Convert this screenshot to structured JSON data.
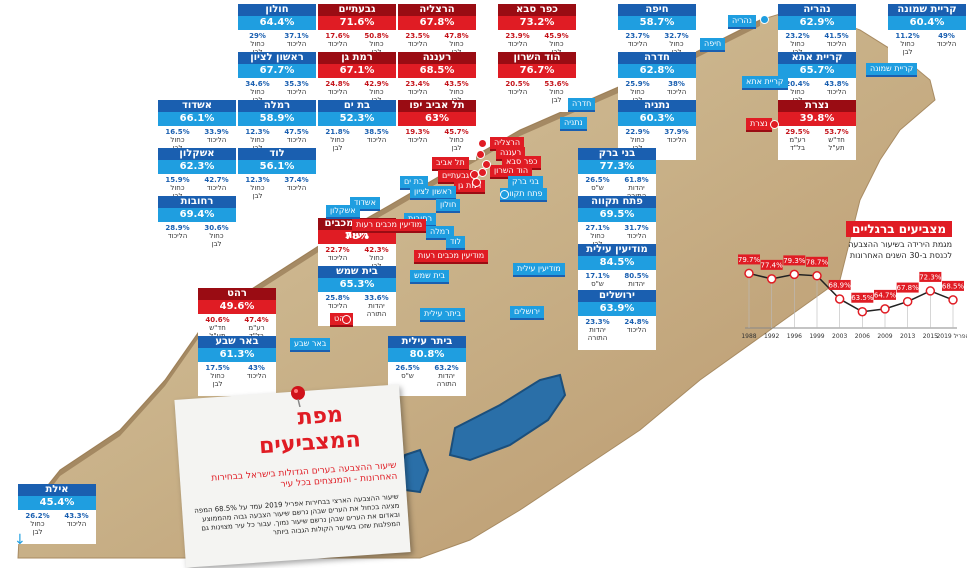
{
  "title": {
    "line1": "מפת",
    "line2": "המצביעים",
    "subtitle": "שיעור ההצבעה בערים הגדולות בישראל בבחירות האחרונות - והמנצחים בכל עיר",
    "description": "שיעור ההצבעה הארצי בבחירות אפריל 2019 עמד על 68.5% המפה מציגה בכחול את הערים שבהן נרשם שיעור הצבעה גבוה מהממוצע ובאדום את הערים שבהן נרשם שיעור נמוך. עבור כל עיר מצוינות גם המפלגות שזכו בשיעור הקולות הגבוה ביותר"
  },
  "colors": {
    "blue_header": "#1a5fb0",
    "blue": "#1f9ee0",
    "red_header": "#9a0c13",
    "red": "#e01c24"
  },
  "cards": [
    {
      "name": "חולון",
      "pct": "64.4%",
      "color": "blue",
      "a": {
        "v": "37.1%",
        "p1": "הליכוד"
      },
      "b": {
        "v": "29%",
        "p1": "כחול",
        "p2": "לבן"
      }
    },
    {
      "name": "גבעתיים",
      "pct": "71.6%",
      "color": "red",
      "a": {
        "v": "50.8%",
        "p1": "כחול",
        "p2": "לבן"
      },
      "b": {
        "v": "17.6%",
        "p1": "הליכוד"
      }
    },
    {
      "name": "הרצליה",
      "pct": "67.8%",
      "color": "red",
      "a": {
        "v": "47.8%",
        "p1": "כחול",
        "p2": "לבן"
      },
      "b": {
        "v": "23.5%",
        "p1": "הליכוד"
      }
    },
    {
      "name": "כפר סבא",
      "pct": "73.2%",
      "color": "red",
      "a": {
        "v": "45.9%",
        "p1": "כחול",
        "p2": "לבן"
      },
      "b": {
        "v": "23.9%",
        "p1": "הליכוד"
      }
    },
    {
      "name": "חיפה",
      "pct": "58.7%",
      "color": "blue",
      "a": {
        "v": "32.7%",
        "p1": "כחול",
        "p2": "לבן"
      },
      "b": {
        "v": "23.7%",
        "p1": "הליכוד"
      }
    },
    {
      "name": "נהריה",
      "pct": "62.9%",
      "color": "blue",
      "a": {
        "v": "41.5%",
        "p1": "הליכוד"
      },
      "b": {
        "v": "23.2%",
        "p1": "כחול",
        "p2": "לבן"
      }
    },
    {
      "name": "קריית שמונה",
      "pct": "60.4%",
      "color": "blue",
      "a": {
        "v": "49%",
        "p1": "הליכוד"
      },
      "b": {
        "v": "11.2%",
        "p1": "כחול",
        "p2": "לבן"
      }
    },
    {
      "name": "ראשון לציון",
      "pct": "67.7%",
      "color": "blue",
      "a": {
        "v": "35.3%",
        "p1": "הליכוד"
      },
      "b": {
        "v": "34.6%",
        "p1": "כחול",
        "p2": "לבן"
      }
    },
    {
      "name": "רמת גן",
      "pct": "67.1%",
      "color": "red",
      "a": {
        "v": "42.9%",
        "p1": "כחול",
        "p2": "לבן"
      },
      "b": {
        "v": "24.8%",
        "p1": "הליכוד"
      }
    },
    {
      "name": "רעננה",
      "pct": "68.5%",
      "color": "red",
      "a": {
        "v": "43.5%",
        "p1": "כחול",
        "p2": "לבן"
      },
      "b": {
        "v": "23.4%",
        "p1": "הליכוד"
      }
    },
    {
      "name": "הוד השרון",
      "pct": "76.7%",
      "color": "red",
      "a": {
        "v": "53.6%",
        "p1": "כחול",
        "p2": "לבן"
      },
      "b": {
        "v": "20.5%",
        "p1": "הליכוד"
      }
    },
    {
      "name": "חדרה",
      "pct": "62.8%",
      "color": "blue",
      "a": {
        "v": "38%",
        "p1": "הליכוד"
      },
      "b": {
        "v": "25.9%",
        "p1": "כחול",
        "p2": "לבן"
      }
    },
    {
      "name": "קריית אתא",
      "pct": "65.7%",
      "color": "blue",
      "a": {
        "v": "43.8%",
        "p1": "הליכוד"
      },
      "b": {
        "v": "20.4%",
        "p1": "כחול",
        "p2": "לבן"
      }
    },
    {
      "name": "אשדוד",
      "pct": "66.1%",
      "color": "blue",
      "a": {
        "v": "33.9%",
        "p1": "הליכוד"
      },
      "b": {
        "v": "16.5%",
        "p1": "כחול",
        "p2": "לבן"
      }
    },
    {
      "name": "רמלה",
      "pct": "58.9%",
      "color": "blue",
      "a": {
        "v": "47.5%",
        "p1": "הליכוד"
      },
      "b": {
        "v": "12.3%",
        "p1": "כחול",
        "p2": "לבן"
      }
    },
    {
      "name": "בת ים",
      "pct": "52.3%",
      "color": "blue",
      "a": {
        "v": "38.5%",
        "p1": "הליכוד"
      },
      "b": {
        "v": "21.8%",
        "p1": "כחול",
        "p2": "לבן"
      }
    },
    {
      "name": "תל אביב יפו",
      "pct": "63%",
      "color": "red",
      "a": {
        "v": "45.7%",
        "p1": "כחול",
        "p2": "לבן"
      },
      "b": {
        "v": "19.3%",
        "p1": "הליכוד"
      }
    },
    {
      "name": "נתניה",
      "pct": "60.3%",
      "color": "blue",
      "a": {
        "v": "37.9%",
        "p1": "הליכוד"
      },
      "b": {
        "v": "22.9%",
        "p1": "כחול",
        "p2": "לבן"
      }
    },
    {
      "name": "נצרת",
      "pct": "39.8%",
      "color": "red",
      "a": {
        "v": "53.7%",
        "p1": "חד\"ש",
        "p2": "תע\"ל"
      },
      "b": {
        "v": "29.5%",
        "p1": "רע\"מ",
        "p2": "בל\"ד"
      }
    },
    {
      "name": "אשקלון",
      "pct": "62.3%",
      "color": "blue",
      "a": {
        "v": "42.7%",
        "p1": "הליכוד"
      },
      "b": {
        "v": "15.9%",
        "p1": "כחול",
        "p2": "לבן"
      }
    },
    {
      "name": "לוד",
      "pct": "56.1%",
      "color": "blue",
      "a": {
        "v": "37.4%",
        "p1": "הליכוד"
      },
      "b": {
        "v": "12.3%",
        "p1": "כחול",
        "p2": "לבן"
      }
    },
    {
      "name": "בני ברק",
      "pct": "77.3%",
      "color": "blue",
      "a": {
        "v": "61.8%",
        "p1": "יהדות",
        "p2": "התורה"
      },
      "b": {
        "v": "26.5%",
        "p1": "ש\"ס"
      }
    },
    {
      "name": "רחובות",
      "pct": "69.4%",
      "color": "blue",
      "a": {
        "v": "30.6%",
        "p1": "כחול",
        "p2": "לבן"
      },
      "b": {
        "v": "28.9%",
        "p1": "הליכוד"
      }
    },
    {
      "name": "פתח תקווה",
      "pct": "69.5%",
      "color": "blue",
      "a": {
        "v": "31.7%",
        "p1": "הליכוד"
      },
      "b": {
        "v": "27.1%",
        "p1": "כחול",
        "p2": "לבן"
      }
    },
    {
      "name": "מודיעין מכבים רעות",
      "pct": "78%",
      "color": "red",
      "a": {
        "v": "42.3%",
        "p1": "כחול",
        "p2": "לבן"
      },
      "b": {
        "v": "22.7%",
        "p1": "הליכוד"
      }
    },
    {
      "name": "מודיעין עילית",
      "pct": "84.5%",
      "color": "blue",
      "a": {
        "v": "80.5%",
        "p1": "יהדות",
        "p2": "התורה"
      },
      "b": {
        "v": "17.1%",
        "p1": "ש\"ס"
      }
    },
    {
      "name": "בית שמש",
      "pct": "65.3%",
      "color": "blue",
      "a": {
        "v": "33.6%",
        "p1": "יהדות",
        "p2": "התורה"
      },
      "b": {
        "v": "25.8%",
        "p1": "הליכוד"
      }
    },
    {
      "name": "רהט",
      "pct": "49.6%",
      "color": "red",
      "a": {
        "v": "47.4%",
        "p1": "רע\"מ",
        "p2": "בל\"ד"
      },
      "b": {
        "v": "40.6%",
        "p1": "חד\"ש",
        "p2": "תע\"ל"
      }
    },
    {
      "name": "ירושלים",
      "pct": "63.9%",
      "color": "blue",
      "a": {
        "v": "24.8%",
        "p1": "הליכוד"
      },
      "b": {
        "v": "23.3%",
        "p1": "יהדות",
        "p2": "התורה"
      }
    },
    {
      "name": "באר שבע",
      "pct": "61.3%",
      "color": "blue",
      "a": {
        "v": "43%",
        "p1": "הליכוד"
      },
      "b": {
        "v": "17.5%",
        "p1": "כחול",
        "p2": "לבן"
      }
    },
    {
      "name": "ביתר עילית",
      "pct": "80.8%",
      "color": "blue",
      "a": {
        "v": "63.2%",
        "p1": "יהדות",
        "p2": "התורה"
      },
      "b": {
        "v": "26.5%",
        "p1": "ש\"ס"
      }
    },
    {
      "name": "אילת",
      "pct": "45.4%",
      "color": "blue",
      "a": {
        "v": "43.3%",
        "p1": "הליכוד"
      },
      "b": {
        "v": "26.2%",
        "p1": "כחול",
        "p2": "לבן"
      }
    }
  ],
  "map_labels": [
    {
      "text": "נהריה",
      "color": "blue"
    },
    {
      "text": "חיפה",
      "color": "blue"
    },
    {
      "text": "קריית שמונה",
      "color": "blue"
    },
    {
      "text": "קריית אתא",
      "color": "blue"
    },
    {
      "text": "נצרת",
      "color": "red"
    },
    {
      "text": "חדרה",
      "color": "blue"
    },
    {
      "text": "נתניה",
      "color": "blue"
    },
    {
      "text": "הרצליה",
      "color": "red"
    },
    {
      "text": "רעננה",
      "color": "red"
    },
    {
      "text": "כפר סבא",
      "color": "red"
    },
    {
      "text": "הוד השרון",
      "color": "red"
    },
    {
      "text": "תל אביב",
      "color": "red"
    },
    {
      "text": "גבעתיים",
      "color": "red"
    },
    {
      "text": "בני ברק",
      "color": "blue"
    },
    {
      "text": "רמת גן",
      "color": "red"
    },
    {
      "text": "פתח תקווה",
      "color": "blue"
    },
    {
      "text": "בת ים",
      "color": "blue"
    },
    {
      "text": "ראשון לציון",
      "color": "blue"
    },
    {
      "text": "אשדוד",
      "color": "blue"
    },
    {
      "text": "חולון",
      "color": "blue"
    },
    {
      "text": "אשקלון",
      "color": "blue"
    },
    {
      "text": "רחובות",
      "color": "blue"
    },
    {
      "text": "מודיעין מכבים רעות",
      "color": "red"
    },
    {
      "text": "רמלה",
      "color": "blue"
    },
    {
      "text": "לוד",
      "color": "blue"
    },
    {
      "text": "מודיעין מכבים רעות",
      "color": "red"
    },
    {
      "text": "מודיעין עילית",
      "color": "blue"
    },
    {
      "text": "בית שמש",
      "color": "blue"
    },
    {
      "text": "ירושלים",
      "color": "blue"
    },
    {
      "text": "ביתר עילית",
      "color": "blue"
    },
    {
      "text": "רהט",
      "color": "red"
    },
    {
      "text": "באר שבע",
      "color": "blue"
    }
  ],
  "chart_data": {
    "type": "line",
    "title": "מצביעים ברגליים",
    "subtitle_line1": "מגמת הירידה בשיעור ההצבעה",
    "subtitle_line2": "לכנסת ב-30 השנים האחרונות",
    "x": [
      "1988",
      "1992",
      "1996",
      "1999",
      "2003",
      "2006",
      "2009",
      "2013",
      "2015",
      "אפריל 2019"
    ],
    "values": [
      79.7,
      77.4,
      79.3,
      78.7,
      68.9,
      63.5,
      64.7,
      67.8,
      72.3,
      68.5
    ],
    "value_labels": [
      "79.7%",
      "77.4%",
      "79.3%",
      "78.7%",
      "68.9%",
      "63.5%",
      "64.7%",
      "67.8%",
      "72.3%",
      "68.5%"
    ],
    "ylim": [
      60,
      82
    ],
    "colors": {
      "line": "#222222",
      "marker": "#e01c24",
      "label_bg": "#e01c24"
    }
  }
}
